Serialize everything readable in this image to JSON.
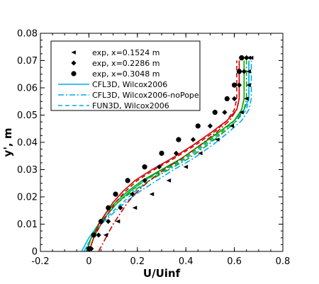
{
  "chart_data": {
    "type": "line",
    "xlabel": "U/Uinf",
    "ylabel": "y', m",
    "xlim": [
      -0.2,
      0.8
    ],
    "ylim": [
      0,
      0.08
    ],
    "xticks": [
      "-0.2",
      "0",
      "0.2",
      "0.4",
      "0.6",
      "0.8"
    ],
    "yticks": [
      "0",
      "0.01",
      "0.02",
      "0.03",
      "0.04",
      "0.05",
      "0.06",
      "0.07",
      "0.08"
    ],
    "grid": false,
    "legend_position": "top-left",
    "markers": [
      {
        "name": "exp, x=0.1524 m",
        "symbol": "triangle-left",
        "color": "#000000",
        "x": [
          0.0,
          0.07,
          0.12,
          0.19,
          0.26,
          0.33,
          0.4,
          0.46,
          0.53,
          0.59,
          0.63,
          0.65,
          0.66,
          0.66,
          0.66,
          0.67
        ],
        "y": [
          0.001,
          0.006,
          0.011,
          0.016,
          0.021,
          0.026,
          0.031,
          0.036,
          0.041,
          0.046,
          0.051,
          0.056,
          0.061,
          0.066,
          0.071,
          0.071
        ]
      },
      {
        "name": "exp, x=0.2286 m",
        "symbol": "diamond",
        "color": "#000000",
        "x": [
          0.01,
          0.04,
          0.08,
          0.13,
          0.18,
          0.23,
          0.29,
          0.36,
          0.43,
          0.5,
          0.56,
          0.6,
          0.62,
          0.64,
          0.65,
          0.65
        ],
        "y": [
          0.001,
          0.006,
          0.011,
          0.016,
          0.021,
          0.026,
          0.031,
          0.036,
          0.041,
          0.046,
          0.051,
          0.056,
          0.061,
          0.066,
          0.071,
          0.071
        ]
      },
      {
        "name": "exp, x=0.3048 m",
        "symbol": "circle",
        "color": "#000000",
        "x": [
          0.0,
          0.02,
          0.05,
          0.08,
          0.11,
          0.16,
          0.23,
          0.3,
          0.37,
          0.45,
          0.52,
          0.57,
          0.6,
          0.62,
          0.63,
          0.63
        ],
        "y": [
          0.001,
          0.006,
          0.011,
          0.016,
          0.021,
          0.026,
          0.031,
          0.036,
          0.041,
          0.046,
          0.051,
          0.056,
          0.061,
          0.066,
          0.071,
          0.071
        ]
      }
    ],
    "series": [
      {
        "name": "CFL3D, Wilcox2006",
        "dash": "solid",
        "color": "#00aaee",
        "legend": true,
        "x": [
          -0.03,
          0.0,
          0.04,
          0.08,
          0.12,
          0.17,
          0.23,
          0.3,
          0.38,
          0.46,
          0.54,
          0.6,
          0.64,
          0.66,
          0.66,
          0.66
        ],
        "y": [
          0.0,
          0.005,
          0.01,
          0.014,
          0.018,
          0.022,
          0.026,
          0.03,
          0.034,
          0.039,
          0.044,
          0.048,
          0.052,
          0.056,
          0.063,
          0.07
        ]
      },
      {
        "name": "CFL3D, Wilcox2006-noPope",
        "dash": "dashdot",
        "color": "#00aaee",
        "legend": true,
        "x": [
          -0.02,
          0.01,
          0.05,
          0.1,
          0.15,
          0.21,
          0.28,
          0.35,
          0.43,
          0.51,
          0.58,
          0.63,
          0.66,
          0.67,
          0.67,
          0.67
        ],
        "y": [
          0.0,
          0.005,
          0.01,
          0.014,
          0.018,
          0.022,
          0.026,
          0.03,
          0.034,
          0.039,
          0.044,
          0.048,
          0.052,
          0.056,
          0.063,
          0.07
        ]
      },
      {
        "name": "FUN3D, Wilcox2006",
        "dash": "dashed",
        "color": "#00aaee",
        "legend": true,
        "x": [
          -0.02,
          0.01,
          0.05,
          0.09,
          0.14,
          0.19,
          0.25,
          0.32,
          0.4,
          0.48,
          0.56,
          0.61,
          0.65,
          0.66,
          0.66,
          0.66
        ],
        "y": [
          0.0,
          0.005,
          0.01,
          0.014,
          0.018,
          0.022,
          0.026,
          0.03,
          0.034,
          0.039,
          0.044,
          0.048,
          0.052,
          0.056,
          0.063,
          0.07
        ]
      },
      {
        "dash": "solid",
        "color": "#00aa00",
        "legend": false,
        "x": [
          -0.01,
          0.01,
          0.04,
          0.07,
          0.11,
          0.16,
          0.22,
          0.3,
          0.38,
          0.46,
          0.54,
          0.6,
          0.63,
          0.64,
          0.64,
          0.64
        ],
        "y": [
          0.0,
          0.005,
          0.01,
          0.014,
          0.018,
          0.022,
          0.026,
          0.03,
          0.034,
          0.039,
          0.044,
          0.048,
          0.052,
          0.056,
          0.063,
          0.07
        ]
      },
      {
        "dash": "dashdot",
        "color": "#00aa00",
        "legend": false,
        "x": [
          0.0,
          0.02,
          0.05,
          0.08,
          0.12,
          0.18,
          0.25,
          0.33,
          0.41,
          0.49,
          0.56,
          0.61,
          0.64,
          0.65,
          0.65,
          0.65
        ],
        "y": [
          0.0,
          0.005,
          0.01,
          0.014,
          0.018,
          0.022,
          0.026,
          0.03,
          0.034,
          0.039,
          0.044,
          0.048,
          0.052,
          0.056,
          0.063,
          0.07
        ]
      },
      {
        "dash": "dashed",
        "color": "#00aa00",
        "legend": false,
        "x": [
          -0.01,
          0.01,
          0.04,
          0.08,
          0.12,
          0.17,
          0.23,
          0.31,
          0.39,
          0.47,
          0.55,
          0.6,
          0.63,
          0.64,
          0.64,
          0.64
        ],
        "y": [
          0.0,
          0.005,
          0.01,
          0.014,
          0.018,
          0.022,
          0.026,
          0.03,
          0.034,
          0.039,
          0.044,
          0.048,
          0.052,
          0.056,
          0.063,
          0.07
        ]
      },
      {
        "dash": "solid",
        "color": "#cc0000",
        "legend": false,
        "x": [
          0.0,
          0.02,
          0.04,
          0.07,
          0.1,
          0.14,
          0.19,
          0.26,
          0.34,
          0.43,
          0.51,
          0.57,
          0.61,
          0.62,
          0.62,
          0.62
        ],
        "y": [
          0.0,
          0.005,
          0.01,
          0.014,
          0.018,
          0.022,
          0.026,
          0.03,
          0.034,
          0.039,
          0.044,
          0.048,
          0.052,
          0.056,
          0.063,
          0.07
        ]
      },
      {
        "dash": "dashdot",
        "color": "#cc0000",
        "legend": false,
        "x": [
          0.04,
          0.07,
          0.1,
          0.13,
          0.16,
          0.2,
          0.25,
          0.31,
          0.38,
          0.46,
          0.53,
          0.58,
          0.61,
          0.62,
          0.62,
          0.62
        ],
        "y": [
          0.0,
          0.005,
          0.01,
          0.014,
          0.018,
          0.022,
          0.026,
          0.03,
          0.034,
          0.039,
          0.044,
          0.048,
          0.052,
          0.056,
          0.063,
          0.07
        ]
      },
      {
        "dash": "dashed",
        "color": "#cc0000",
        "legend": false,
        "x": [
          0.0,
          0.02,
          0.05,
          0.08,
          0.11,
          0.15,
          0.2,
          0.27,
          0.35,
          0.44,
          0.52,
          0.57,
          0.6,
          0.61,
          0.61,
          0.61
        ],
        "y": [
          0.0,
          0.005,
          0.01,
          0.014,
          0.018,
          0.022,
          0.026,
          0.03,
          0.034,
          0.039,
          0.044,
          0.048,
          0.052,
          0.056,
          0.063,
          0.07
        ]
      }
    ]
  }
}
